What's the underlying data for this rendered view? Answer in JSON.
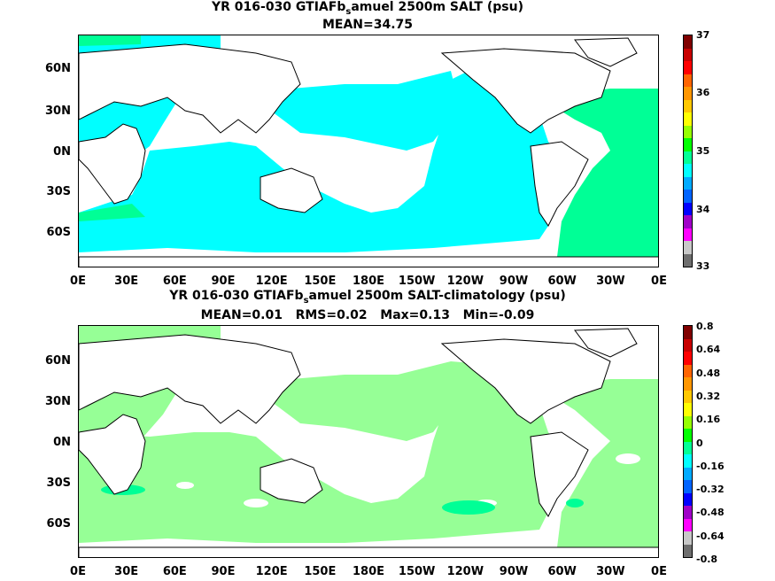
{
  "panel1": {
    "title_prefix": "YR 016-030 GTIAFb",
    "title_sub": "s",
    "title_suffix": "amuel 2500m SALT (psu)",
    "subtitle": "MEAN=34.75",
    "colorbar_labels": [
      "37",
      "36",
      "35",
      "34",
      "33"
    ],
    "colors": [
      "#6e6e6e",
      "#c8c8c8",
      "#ff00ff",
      "#a000c8",
      "#0000ff",
      "#0064ff",
      "#00aaff",
      "#00ffff",
      "#00ff96",
      "#00ff00",
      "#96ff00",
      "#ffff00",
      "#ffc800",
      "#ff9600",
      "#ff6400",
      "#ff0000",
      "#c80000",
      "#800000"
    ]
  },
  "panel2": {
    "title_prefix": "YR 016-030 GTIAFb",
    "title_sub": "s",
    "title_suffix": "amuel 2500m SALT-climatology (psu)",
    "subtitle": "MEAN=0.01   RMS=0.02   Max=0.13   Min=-0.09",
    "colorbar_labels": [
      "0.8",
      "0.64",
      "0.48",
      "0.32",
      "0.16",
      "0",
      "-0.16",
      "-0.32",
      "-0.48",
      "-0.64",
      "-0.8"
    ],
    "colors": [
      "#6e6e6e",
      "#c8c8c8",
      "#ff00ff",
      "#a000c8",
      "#0000ff",
      "#0064ff",
      "#00aaff",
      "#00ffff",
      "#00ff96",
      "#00ff00",
      "#96ff00",
      "#ffff00",
      "#ffc800",
      "#ff9600",
      "#ff6400",
      "#ff0000",
      "#c80000",
      "#800000"
    ]
  },
  "lat_labels": [
    "60N",
    "30N",
    "0N",
    "30S",
    "60S"
  ],
  "lon_labels": [
    "0E",
    "30E",
    "60E",
    "90E",
    "120E",
    "150E",
    "180E",
    "150W",
    "120W",
    "90W",
    "60W",
    "30W",
    "0E"
  ]
}
